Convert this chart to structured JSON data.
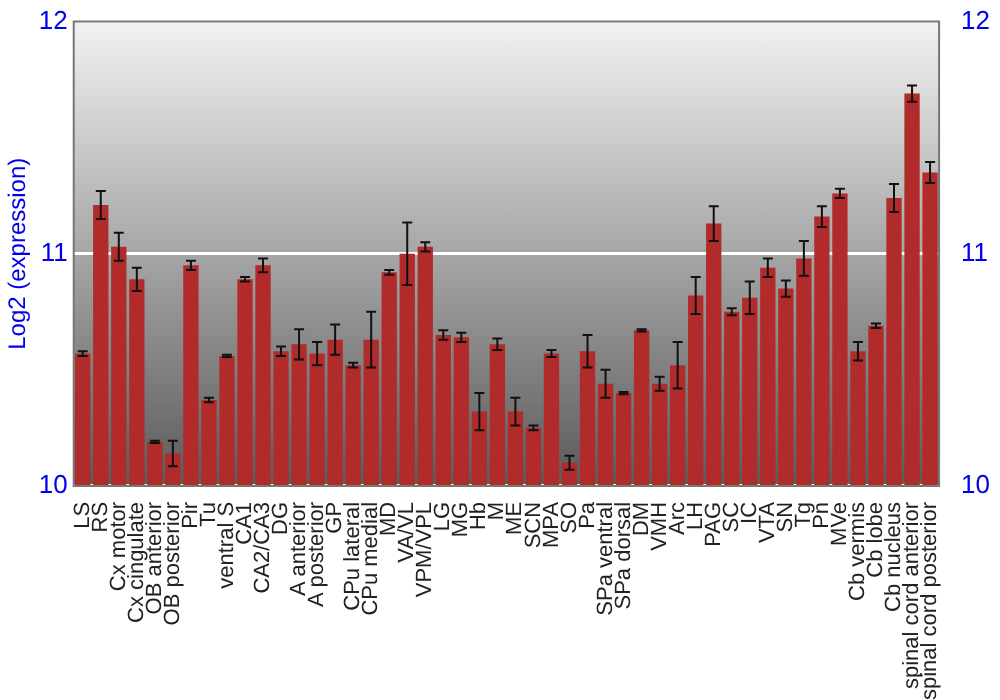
{
  "chart_data": {
    "type": "bar",
    "ylabel": "Log2 (expression)",
    "categories": [
      "LS",
      "RS",
      "Cx motor",
      "Cx cingulate",
      "OB anterior",
      "OB posterior",
      "Pir",
      "Tu",
      "ventral S",
      "CA1",
      "CA2/CA3",
      "DG",
      "A anterior",
      "A posterior",
      "GP",
      "CPu lateral",
      "CPu medial",
      "MD",
      "VA/VL",
      "VPM/VPL",
      "LG",
      "MG",
      "Hb",
      "M",
      "ME",
      "SCN",
      "MPA",
      "SO",
      "Pa",
      "SPa ventral",
      "SPa dorsal",
      "DM",
      "VMH",
      "Arc",
      "LH",
      "PAG",
      "SC",
      "IC",
      "VTA",
      "SN",
      "Tg",
      "Pn",
      "MVe",
      "Cb vermis",
      "Cb lobe",
      "Cb nucleus",
      "spinal cord anterior",
      "spinal cord posterior"
    ],
    "values": [
      10.57,
      11.21,
      11.03,
      10.89,
      10.19,
      10.14,
      10.95,
      10.37,
      10.56,
      10.89,
      10.95,
      10.58,
      10.61,
      10.57,
      10.63,
      10.52,
      10.63,
      10.92,
      11.0,
      11.03,
      10.65,
      10.64,
      10.32,
      10.61,
      10.32,
      10.25,
      10.57,
      10.1,
      10.58,
      10.44,
      10.4,
      10.67,
      10.44,
      10.52,
      10.82,
      11.13,
      10.75,
      10.81,
      10.94,
      10.85,
      10.98,
      11.16,
      11.26,
      10.58,
      10.69,
      11.24,
      11.69,
      11.35
    ],
    "errors": [
      0.01,
      0.06,
      0.06,
      0.05,
      0.005,
      0.055,
      0.02,
      0.01,
      0.005,
      0.01,
      0.03,
      0.02,
      0.065,
      0.05,
      0.065,
      0.01,
      0.12,
      0.01,
      0.135,
      0.02,
      0.02,
      0.02,
      0.08,
      0.025,
      0.06,
      0.01,
      0.015,
      0.03,
      0.07,
      0.06,
      0.005,
      0.005,
      0.03,
      0.1,
      0.08,
      0.075,
      0.015,
      0.07,
      0.04,
      0.035,
      0.075,
      0.045,
      0.02,
      0.04,
      0.01,
      0.06,
      0.035,
      0.045
    ],
    "color": "#b22b2b",
    "ylim": [
      10,
      12
    ],
    "yticks": [
      10,
      11,
      12
    ],
    "y2lim": [
      10,
      12
    ],
    "y2ticks": [
      10,
      11,
      12
    ],
    "grid": "y",
    "legend": false
  }
}
